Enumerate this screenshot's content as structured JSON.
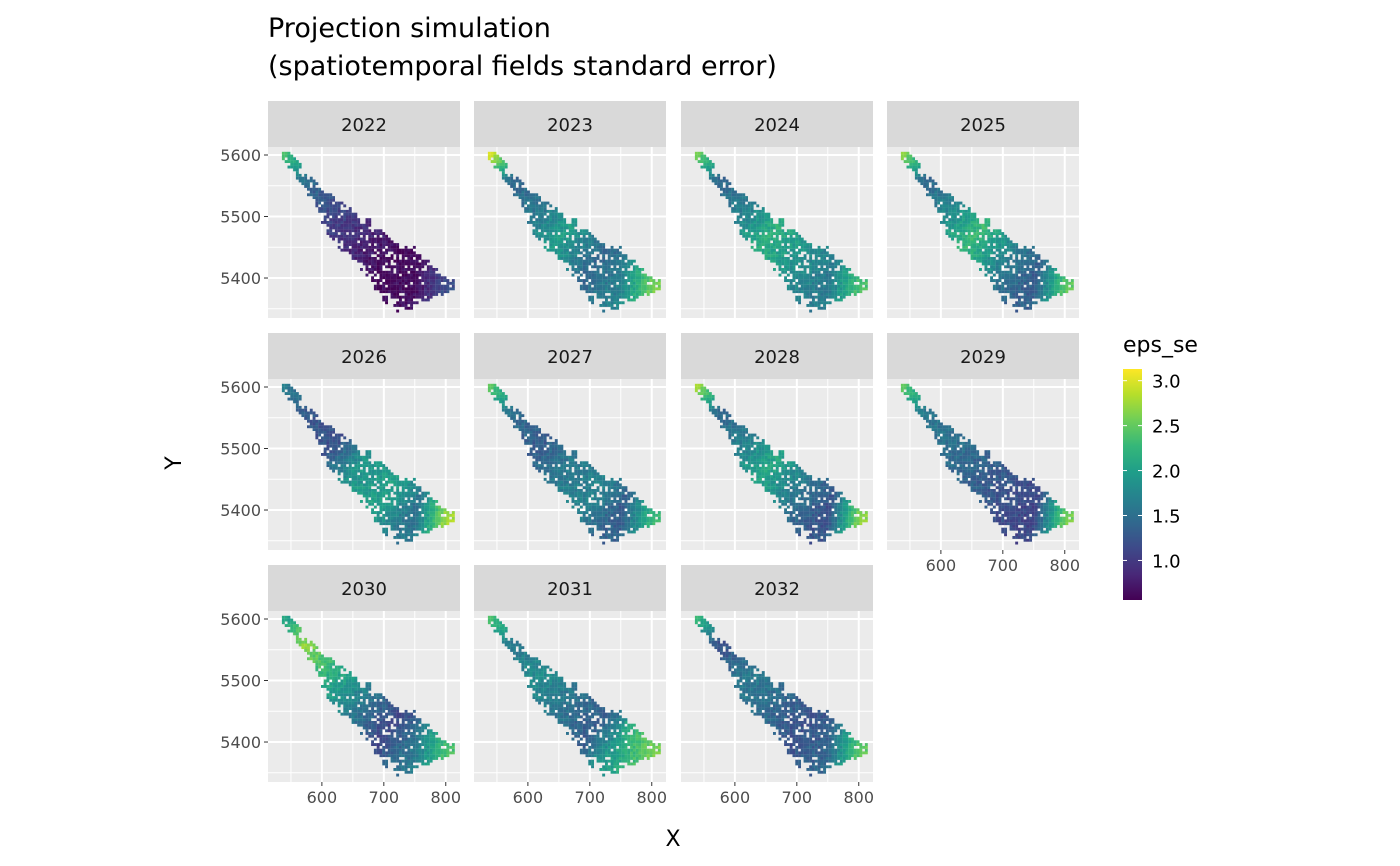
{
  "chart_data": {
    "type": "heatmap",
    "title_line1": "Projection simulation",
    "title_line2": "(spatiotemporal fields standard error)",
    "xlabel": "X",
    "ylabel": "Y",
    "xlim": [
      513,
      823
    ],
    "ylim": [
      5335,
      5613
    ],
    "x_ticks": [
      "600",
      "700",
      "800"
    ],
    "x_tick_values": [
      600,
      700,
      800
    ],
    "y_ticks": [
      "5400",
      "5500",
      "5600"
    ],
    "y_tick_values": [
      5400,
      5500,
      5600
    ],
    "grid": true,
    "legend": {
      "title": "eps_se",
      "position": "right",
      "range": [
        0.56,
        3.13
      ],
      "ticks": [
        "1.0",
        "1.5",
        "2.0",
        "2.5",
        "3.0"
      ],
      "tick_values": [
        1.0,
        1.5,
        2.0,
        2.5,
        3.0
      ],
      "colormap": [
        "#440154",
        "#482878",
        "#3e4989",
        "#31688e",
        "#26828e",
        "#1f9e89",
        "#35b779",
        "#6ece58",
        "#b5de2b",
        "#fde725"
      ]
    },
    "lake_centerline": [
      [
        540,
        5597
      ],
      [
        570,
        5560
      ],
      [
        597,
        5527
      ],
      [
        637,
        5478
      ],
      [
        694,
        5430
      ],
      [
        740,
        5395
      ],
      [
        800,
        5385
      ]
    ],
    "lake_halfwidth": [
      8,
      8,
      14,
      28,
      34,
      48,
      12
    ],
    "profile_positions": [
      0,
      0.15,
      0.35,
      0.5,
      0.7,
      0.85,
      1
    ],
    "facets": [
      {
        "label": "2022",
        "values": [
          2.3,
          1.5,
          1.1,
          0.9,
          0.6,
          0.65,
          1.2
        ]
      },
      {
        "label": "2023",
        "values": [
          2.9,
          1.4,
          1.6,
          2.0,
          1.4,
          1.7,
          2.6
        ]
      },
      {
        "label": "2024",
        "values": [
          2.5,
          1.4,
          1.7,
          2.2,
          1.8,
          1.6,
          2.4
        ]
      },
      {
        "label": "2025",
        "values": [
          2.6,
          1.4,
          1.8,
          2.3,
          1.6,
          1.3,
          2.5
        ]
      },
      {
        "label": "2026",
        "values": [
          1.6,
          1.3,
          1.2,
          1.9,
          2.0,
          1.5,
          2.8
        ]
      },
      {
        "label": "2027",
        "values": [
          2.4,
          1.5,
          1.3,
          1.6,
          1.7,
          1.3,
          2.3
        ]
      },
      {
        "label": "2028",
        "values": [
          2.7,
          1.4,
          1.7,
          2.1,
          1.5,
          1.2,
          2.7
        ]
      },
      {
        "label": "2029",
        "values": [
          2.4,
          1.6,
          1.5,
          1.4,
          1.2,
          1.1,
          2.6
        ]
      },
      {
        "label": "2030",
        "values": [
          2.0,
          2.7,
          2.1,
          1.7,
          1.1,
          1.6,
          2.4
        ]
      },
      {
        "label": "2031",
        "values": [
          2.3,
          1.6,
          1.8,
          1.6,
          1.3,
          2.1,
          2.6
        ]
      },
      {
        "label": "2032",
        "values": [
          2.2,
          1.2,
          1.6,
          1.5,
          1.2,
          1.4,
          2.5
        ]
      }
    ]
  }
}
